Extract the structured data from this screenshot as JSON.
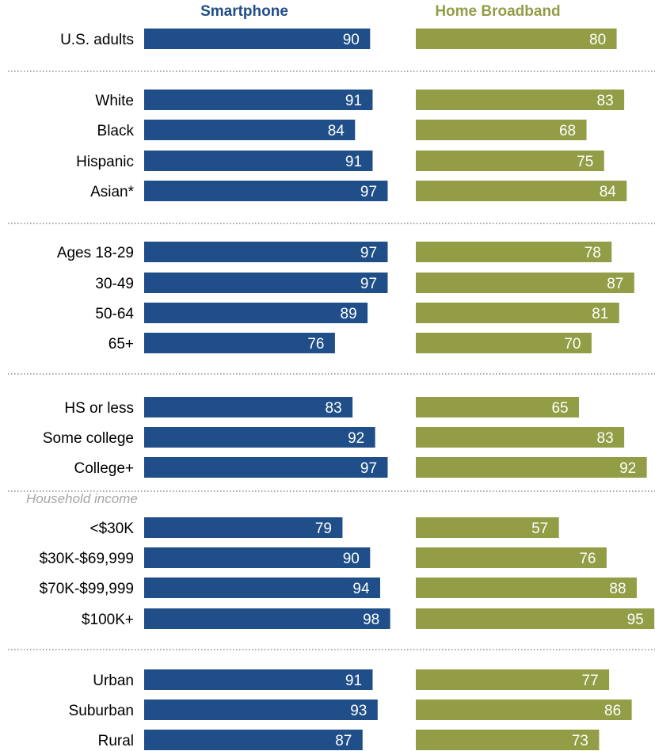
{
  "chart_data": {
    "type": "bar",
    "orientation": "horizontal",
    "series": [
      {
        "name": "Smartphone",
        "color": "#1f4e89"
      },
      {
        "name": "Home Broadband",
        "color": "#929d46"
      }
    ],
    "groups": [
      {
        "title": "",
        "rows": [
          {
            "label": "U.S. adults",
            "values": [
              90,
              80
            ]
          }
        ]
      },
      {
        "title": "",
        "rows": [
          {
            "label": "White",
            "values": [
              91,
              83
            ]
          },
          {
            "label": "Black",
            "values": [
              84,
              68
            ]
          },
          {
            "label": "Hispanic",
            "values": [
              91,
              75
            ]
          },
          {
            "label": "Asian*",
            "values": [
              97,
              84
            ]
          }
        ]
      },
      {
        "title": "",
        "rows": [
          {
            "label": "Ages 18-29",
            "values": [
              97,
              78
            ]
          },
          {
            "label": "30-49",
            "values": [
              97,
              87
            ]
          },
          {
            "label": "50-64",
            "values": [
              89,
              81
            ]
          },
          {
            "label": "65+",
            "values": [
              76,
              70
            ]
          }
        ]
      },
      {
        "title": "",
        "rows": [
          {
            "label": "HS or less",
            "values": [
              83,
              65
            ]
          },
          {
            "label": "Some college",
            "values": [
              92,
              83
            ]
          },
          {
            "label": "College+",
            "values": [
              97,
              92
            ]
          }
        ]
      },
      {
        "title": "Household income",
        "rows": [
          {
            "label": "<$30K",
            "values": [
              79,
              57
            ]
          },
          {
            "label": "$30K-$69,999",
            "values": [
              90,
              76
            ]
          },
          {
            "label": "$70K-$99,999",
            "values": [
              94,
              88
            ]
          },
          {
            "label": "$100K+",
            "values": [
              98,
              95
            ]
          }
        ]
      },
      {
        "title": "",
        "rows": [
          {
            "label": "Urban",
            "values": [
              91,
              77
            ]
          },
          {
            "label": "Suburban",
            "values": [
              93,
              86
            ]
          },
          {
            "label": "Rural",
            "values": [
              87,
              73
            ]
          }
        ]
      }
    ]
  }
}
